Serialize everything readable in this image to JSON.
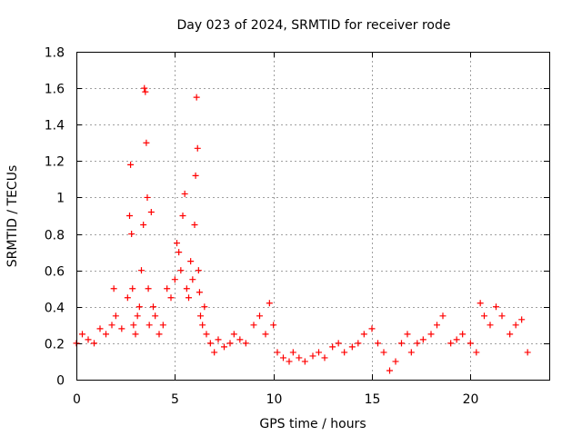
{
  "chart_data": {
    "type": "scatter",
    "title": "Day 023 of 2024, SRMTID for receiver rode",
    "xlabel": "GPS time / hours",
    "ylabel": "SRMTID / TECUs",
    "xlim": [
      0,
      24
    ],
    "ylim": [
      0,
      1.8
    ],
    "xticks": [
      0,
      5,
      10,
      15,
      20
    ],
    "yticks": [
      0,
      0.2,
      0.4,
      0.6,
      0.8,
      1,
      1.2,
      1.4,
      1.6,
      1.8
    ],
    "xtick_labels": [
      "0",
      "5",
      "10",
      "15",
      "20"
    ],
    "ytick_labels": [
      "0",
      "0.2",
      "0.4",
      "0.6",
      "0.8",
      "1",
      "1.2",
      "1.4",
      "1.6",
      "1.8"
    ],
    "grid": true,
    "marker": "+",
    "marker_color": "#ff0000",
    "series": [
      {
        "name": "SRMTID",
        "x": [
          0.0,
          0.3,
          0.6,
          0.9,
          1.2,
          1.5,
          1.8,
          1.9,
          2.0,
          2.3,
          2.6,
          2.7,
          2.75,
          2.8,
          2.85,
          2.9,
          3.0,
          3.1,
          3.2,
          3.3,
          3.4,
          3.45,
          3.5,
          3.55,
          3.6,
          3.65,
          3.7,
          3.8,
          3.9,
          4.0,
          4.2,
          4.4,
          4.6,
          4.8,
          5.0,
          5.1,
          5.2,
          5.3,
          5.4,
          5.5,
          5.6,
          5.7,
          5.8,
          5.9,
          6.0,
          6.05,
          6.1,
          6.15,
          6.2,
          6.25,
          6.3,
          6.4,
          6.5,
          6.6,
          6.8,
          7.0,
          7.2,
          7.5,
          7.8,
          8.0,
          8.3,
          8.6,
          9.0,
          9.3,
          9.6,
          9.8,
          10.0,
          10.2,
          10.5,
          10.8,
          11.0,
          11.3,
          11.6,
          12.0,
          12.3,
          12.6,
          13.0,
          13.3,
          13.6,
          14.0,
          14.3,
          14.6,
          15.0,
          15.3,
          15.6,
          15.9,
          16.2,
          16.5,
          16.8,
          17.0,
          17.3,
          17.6,
          18.0,
          18.3,
          18.6,
          19.0,
          19.3,
          19.6,
          20.0,
          20.3,
          20.5,
          20.7,
          21.0,
          21.3,
          21.6,
          22.0,
          22.3,
          22.6,
          22.9
        ],
        "values": [
          0.2,
          0.25,
          0.22,
          0.2,
          0.28,
          0.25,
          0.3,
          0.5,
          0.35,
          0.28,
          0.45,
          0.9,
          1.18,
          0.8,
          0.5,
          0.3,
          0.25,
          0.35,
          0.4,
          0.6,
          0.85,
          1.6,
          1.58,
          1.3,
          1.0,
          0.5,
          0.3,
          0.92,
          0.4,
          0.35,
          0.25,
          0.3,
          0.5,
          0.45,
          0.55,
          0.75,
          0.7,
          0.6,
          0.9,
          1.02,
          0.5,
          0.45,
          0.65,
          0.55,
          0.85,
          1.12,
          1.55,
          1.27,
          0.6,
          0.48,
          0.35,
          0.3,
          0.4,
          0.25,
          0.2,
          0.15,
          0.22,
          0.18,
          0.2,
          0.25,
          0.22,
          0.2,
          0.3,
          0.35,
          0.25,
          0.42,
          0.3,
          0.15,
          0.12,
          0.1,
          0.15,
          0.12,
          0.1,
          0.13,
          0.15,
          0.12,
          0.18,
          0.2,
          0.15,
          0.18,
          0.2,
          0.25,
          0.28,
          0.2,
          0.15,
          0.05,
          0.1,
          0.2,
          0.25,
          0.15,
          0.2,
          0.22,
          0.25,
          0.3,
          0.35,
          0.2,
          0.22,
          0.25,
          0.2,
          0.15,
          0.42,
          0.35,
          0.3,
          0.4,
          0.35,
          0.25,
          0.3,
          0.33,
          0.15
        ]
      }
    ]
  }
}
